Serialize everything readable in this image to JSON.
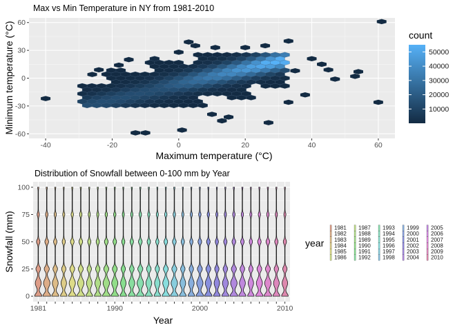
{
  "chart_data": [
    {
      "type": "heatmap",
      "subtype": "hexbin",
      "title": "Max vs Min Temperature in NY from 1981-2010",
      "xlabel": "Maximum temperature (°C)",
      "ylabel": "Minimum temperature (°C)",
      "xlim": [
        -45,
        65
      ],
      "ylim": [
        -65,
        65
      ],
      "x_ticks": [
        -40,
        -20,
        0,
        20,
        40,
        60
      ],
      "y_ticks": [
        -60,
        -30,
        0,
        30,
        60
      ],
      "grid": true,
      "legend": {
        "title": "count",
        "placement": "right",
        "breaks": [
          10000,
          20000,
          30000,
          40000,
          50000
        ],
        "range": [
          1,
          55000
        ],
        "color_low": "#132b43",
        "color_high": "#56b1f7"
      },
      "main_cloud": {
        "x_range": [
          -30,
          32
        ],
        "y_range": [
          -30,
          25
        ],
        "ridge_start": [
          -6,
          -12
        ],
        "ridge_end": [
          30,
          18
        ],
        "peak": [
          27,
          16
        ]
      },
      "outliers": [
        {
          "x": 61,
          "y": 61,
          "count": 1
        },
        {
          "x": -40,
          "y": -22,
          "count": 1
        },
        {
          "x": -13,
          "y": -59,
          "count": 1
        },
        {
          "x": -10,
          "y": -59,
          "count": 1
        },
        {
          "x": 1,
          "y": -56,
          "count": 1
        },
        {
          "x": 60,
          "y": -26,
          "count": 1
        },
        {
          "x": 47,
          "y": -1,
          "count": 1
        },
        {
          "x": 53,
          "y": 2,
          "count": 1
        },
        {
          "x": 54,
          "y": 7,
          "count": 1
        },
        {
          "x": 45,
          "y": 9,
          "count": 1
        },
        {
          "x": 38,
          "y": -18,
          "count": 1
        },
        {
          "x": 33,
          "y": -26,
          "count": 1
        },
        {
          "x": 27,
          "y": -48,
          "count": 1
        },
        {
          "x": 13,
          "y": -46,
          "count": 1
        },
        {
          "x": 10,
          "y": -39,
          "count": 1
        },
        {
          "x": 15,
          "y": -42,
          "count": 1
        },
        {
          "x": 5,
          "y": 35,
          "count": 1
        },
        {
          "x": 3,
          "y": 39,
          "count": 1
        },
        {
          "x": 20,
          "y": 33,
          "count": 1
        },
        {
          "x": 26,
          "y": 35,
          "count": 1
        },
        {
          "x": 33,
          "y": 40,
          "count": 1
        },
        {
          "x": 40,
          "y": 21,
          "count": 1
        },
        {
          "x": 43,
          "y": 15,
          "count": 1
        },
        {
          "x": 35,
          "y": 8,
          "count": 1
        },
        {
          "x": -18,
          "y": 14,
          "count": 1
        },
        {
          "x": -24,
          "y": 9,
          "count": 1
        },
        {
          "x": -26,
          "y": 4,
          "count": 1
        },
        {
          "x": -15,
          "y": 20,
          "count": 1
        },
        {
          "x": 0,
          "y": 28,
          "count": 1
        },
        {
          "x": 11,
          "y": 33,
          "count": 1
        }
      ]
    },
    {
      "type": "violin",
      "title": "Distribution of Snowfall between 0-100 mm by Year",
      "xlabel": "Year",
      "ylabel": "Snowfall (mm)",
      "ylim": [
        0,
        100
      ],
      "y_ticks": [
        0,
        25,
        50,
        75,
        100
      ],
      "x_ticks": [
        1981,
        1990,
        2000,
        2010
      ],
      "grid": true,
      "legend": {
        "title": "year",
        "placement": "right",
        "columns": [
          [
            "1981",
            "1982",
            "1983",
            "1984",
            "1985",
            "1986"
          ],
          [
            "1987",
            "1988",
            "1989",
            "1990",
            "1991",
            "1992"
          ],
          [
            "1993",
            "1994",
            "1995",
            "1996",
            "1997",
            "1998"
          ],
          [
            "1999",
            "2000",
            "2001",
            "2002",
            "2003",
            "2004"
          ],
          [
            "2005",
            "2006",
            "2007",
            "2008",
            "2009",
            "2010"
          ]
        ]
      },
      "years": [
        1981,
        1982,
        1983,
        1984,
        1985,
        1986,
        1987,
        1988,
        1989,
        1990,
        1991,
        1992,
        1993,
        1994,
        1995,
        1996,
        1997,
        1998,
        1999,
        2000,
        2001,
        2002,
        2003,
        2004,
        2005,
        2006,
        2007,
        2008,
        2009,
        2010
      ],
      "density_modes_mm": [
        0,
        12,
        25,
        50,
        75,
        100
      ],
      "max_value": 100
    }
  ]
}
